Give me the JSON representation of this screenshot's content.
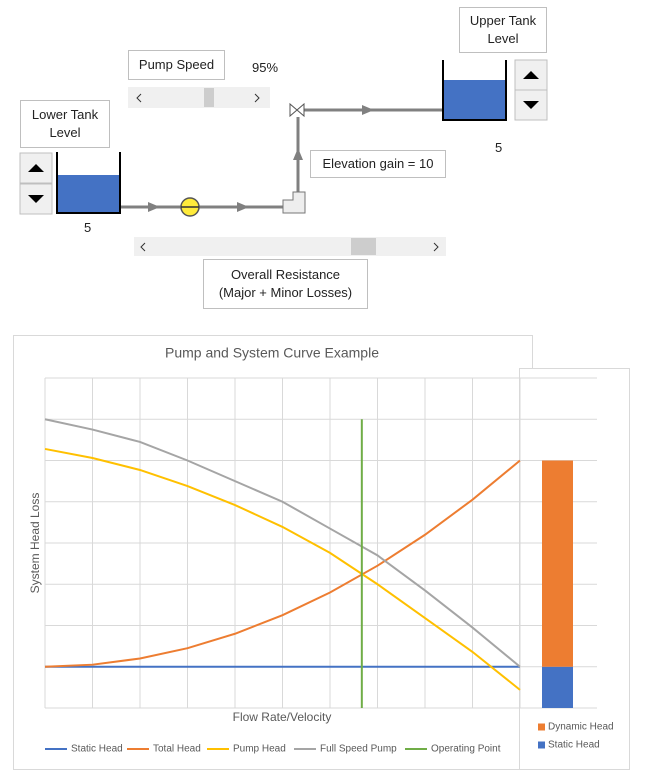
{
  "lower_tank": {
    "label": "Lower Tank Level",
    "level": "5"
  },
  "upper_tank": {
    "label": "Upper Tank Level",
    "level": "5"
  },
  "pump_speed": {
    "label": "Pump Speed",
    "value": "95%"
  },
  "elevation_label": "Elevation gain = 10",
  "resistance_label": "Overall Resistance (Major + Minor Losses)",
  "chart_data": [
    {
      "type": "line",
      "title": "Pump and System Curve Example",
      "x_label": "Flow Rate/Velocity",
      "y_label": "System Head Loss",
      "x": [
        0,
        1,
        2,
        3,
        4,
        5,
        6,
        7,
        8,
        9,
        10
      ],
      "xlim": [
        0,
        10
      ],
      "ylim": [
        0,
        8
      ],
      "xticks": [
        0,
        1,
        2,
        3,
        4,
        5,
        6,
        7,
        8,
        9,
        10
      ],
      "yticks": [
        0,
        1,
        2,
        3,
        4,
        5,
        6,
        7,
        8
      ],
      "show_tick_labels": false,
      "grid": true,
      "legend": "bottom",
      "series": [
        {
          "name": "Static Head",
          "color": "#4472c4",
          "values": [
            1,
            1,
            1,
            1,
            1,
            1,
            1,
            1,
            1,
            1,
            1
          ]
        },
        {
          "name": "Total Head",
          "color": "#ed7d31",
          "values": [
            1,
            1.05,
            1.2,
            1.45,
            1.8,
            2.25,
            2.8,
            3.45,
            4.2,
            5.05,
            6
          ]
        },
        {
          "name": "Pump Head",
          "color": "#ffc000",
          "values": [
            6.28,
            6.06,
            5.77,
            5.38,
            4.92,
            4.39,
            3.76,
            3.0,
            2.18,
            1.36,
            0.44
          ]
        },
        {
          "name": "Full Speed Pump",
          "color": "#a5a5a5",
          "values": [
            7,
            6.75,
            6.45,
            6,
            5.5,
            5,
            4.35,
            3.7,
            2.85,
            1.95,
            1
          ]
        },
        {
          "name": "Operating Point",
          "color": "#70ad47",
          "x": [
            6.67,
            6.67
          ],
          "values": [
            0,
            7
          ]
        }
      ]
    },
    {
      "type": "stacked_bar",
      "ylim": [
        0,
        8
      ],
      "yticks": [
        0,
        1,
        2,
        3,
        4,
        5,
        6,
        7,
        8
      ],
      "show_tick_labels": false,
      "grid": true,
      "legend": "bottom",
      "series": [
        {
          "name": "Static Head",
          "color": "#4472c4",
          "values": [
            1
          ]
        },
        {
          "name": "Dynamic Head",
          "color": "#ed7d31",
          "values": [
            5
          ]
        }
      ]
    }
  ]
}
